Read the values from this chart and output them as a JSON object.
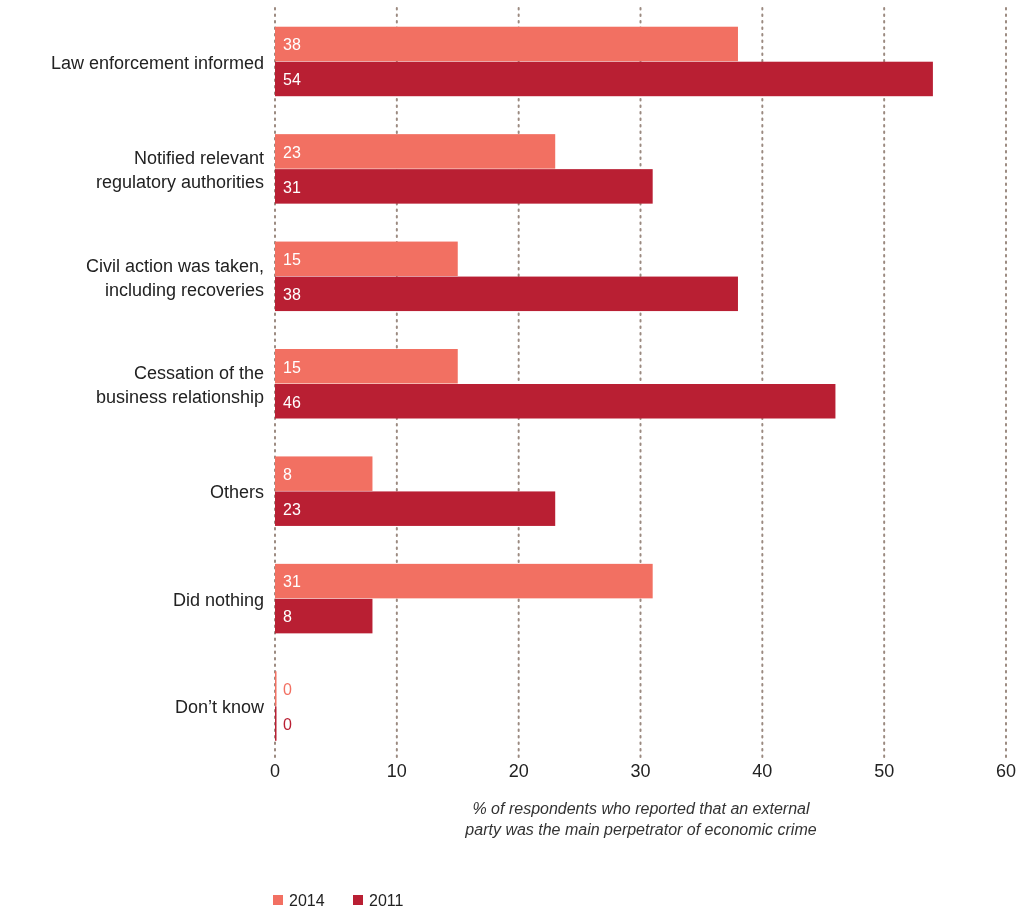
{
  "chart_data": {
    "type": "bar",
    "orientation": "horizontal",
    "categories": [
      "Law enforcement informed",
      "Notified relevant regulatory authorities",
      "Civil action was taken, including recoveries",
      "Cessation of the business relationship",
      "Others",
      "Did nothing",
      "Don’t know"
    ],
    "series": [
      {
        "name": "2014",
        "color": "#f27062",
        "values": [
          38,
          23,
          15,
          15,
          8,
          31,
          0
        ]
      },
      {
        "name": "2011",
        "color": "#b91f33",
        "values": [
          54,
          31,
          38,
          46,
          23,
          8,
          0
        ]
      }
    ],
    "xlabel": "% of respondents who reported that an external\nparty was the main perpetrator of economic crime",
    "xlim": [
      0,
      60
    ],
    "xticks": [
      0,
      10,
      20,
      30,
      40,
      50,
      60
    ],
    "grid": "x",
    "data_labels": true,
    "legend": "bottom left"
  }
}
